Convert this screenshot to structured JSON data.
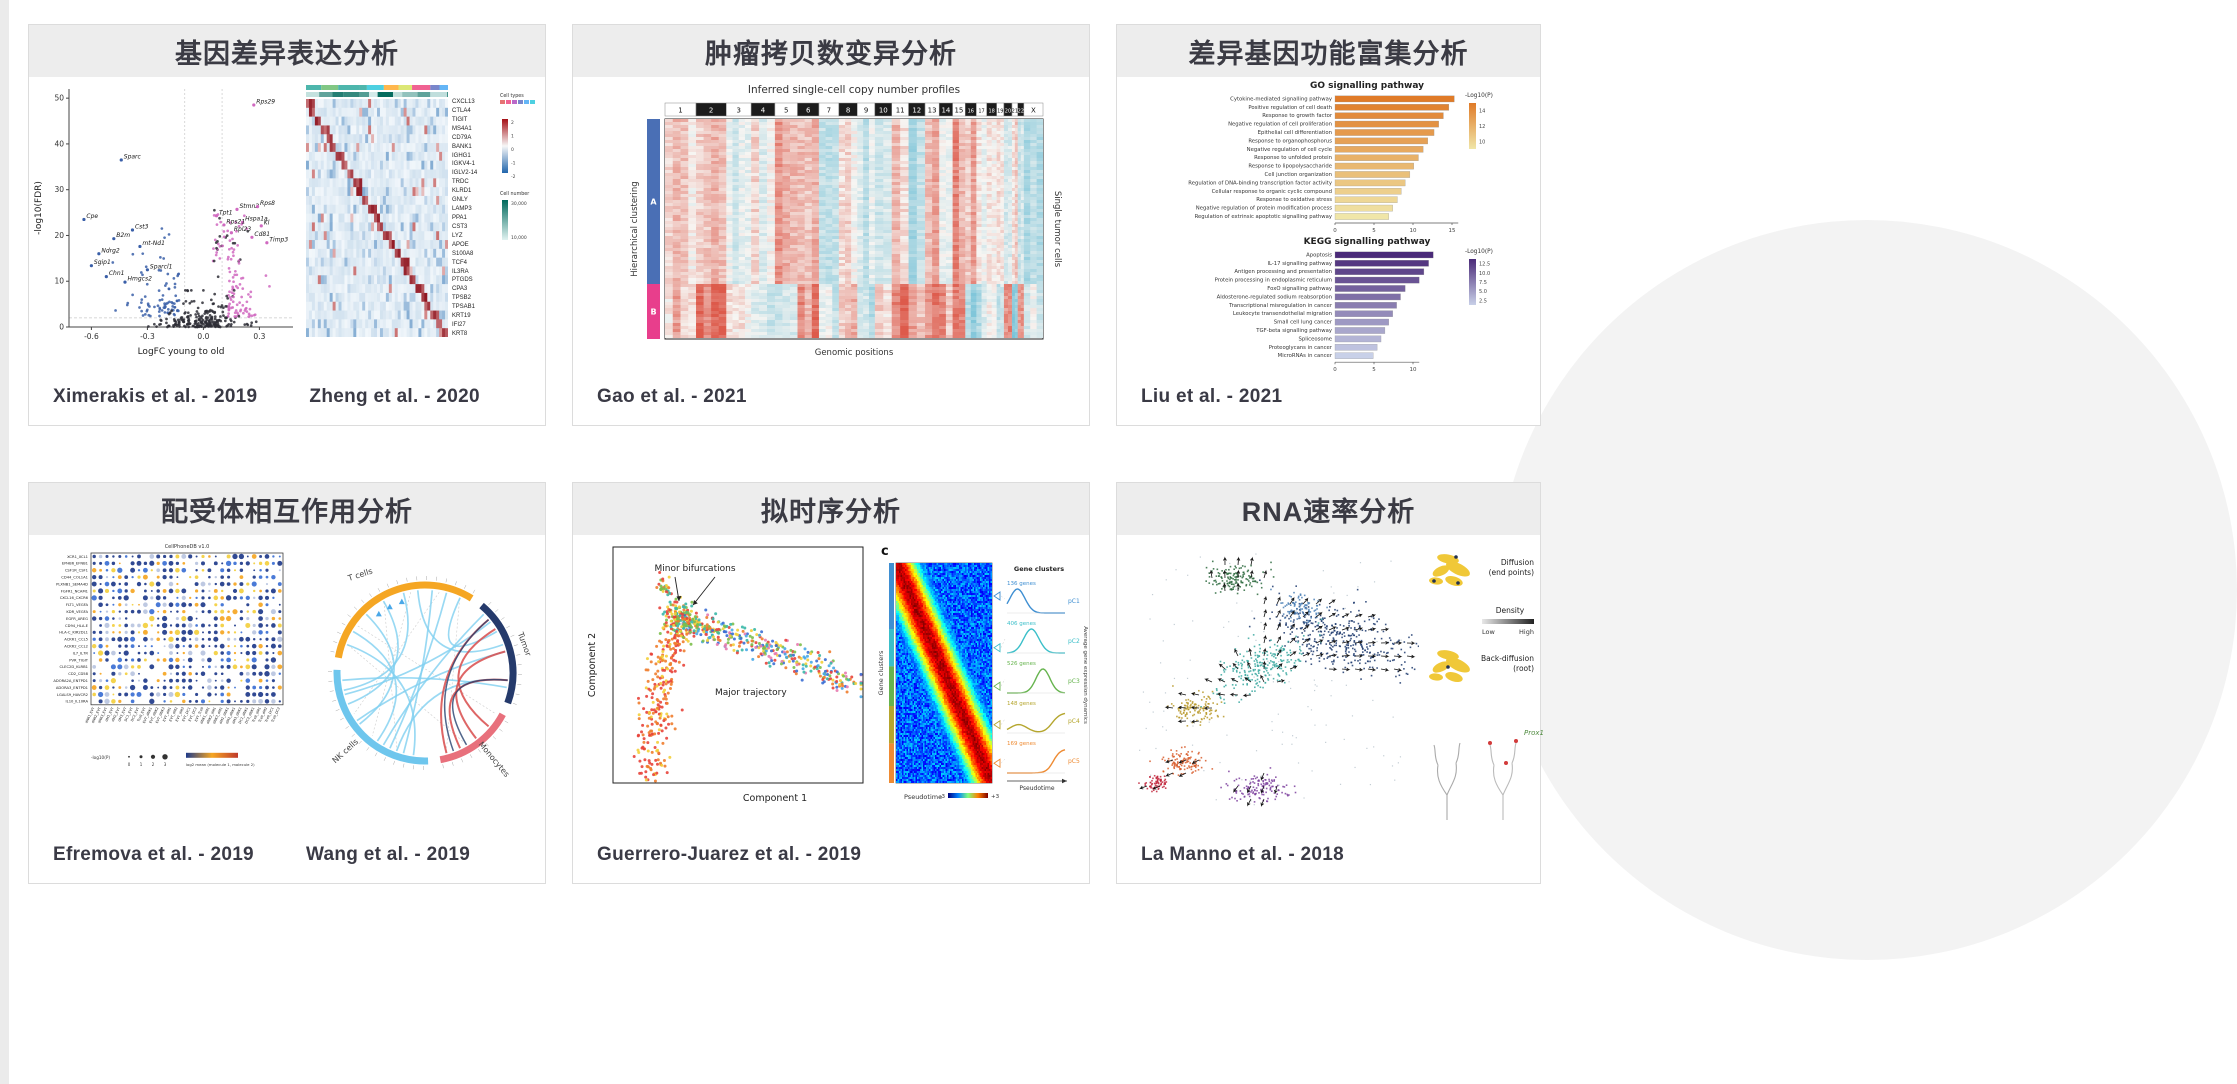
{
  "cards": [
    {
      "key": "dge",
      "title": "基因差异表达分析",
      "citations": [
        "Ximerakis et al. - 2019",
        "Zheng et al. - 2020"
      ]
    },
    {
      "key": "cnv",
      "title": "肿瘤拷贝数变异分析",
      "citations": [
        "Gao et al. - 2021"
      ]
    },
    {
      "key": "enrich",
      "title": "差异基因功能富集分析",
      "citations": [
        "Liu et al. - 2021"
      ]
    },
    {
      "key": "lri",
      "title": "配受体相互作用分析",
      "citations": [
        "Efremova et al. - 2019",
        "Wang et al. - 2019"
      ]
    },
    {
      "key": "pseudotime",
      "title": "拟时序分析",
      "citations": [
        "Guerrero-Juarez et al. - 2019"
      ]
    },
    {
      "key": "velocity",
      "title": "RNA速率分析",
      "citations": [
        "La Manno et al. - 2018"
      ]
    }
  ],
  "chart_data": [
    {
      "id": "volcano",
      "panel": "dge",
      "type": "scatter",
      "xlabel": "LogFC young to old",
      "ylabel": "-log10(FDR)",
      "xticks": [
        -0.6,
        -0.3,
        0.0,
        0.3
      ],
      "yticks": [
        0,
        10,
        20,
        30,
        40,
        50
      ],
      "xlim": [
        -0.72,
        0.48
      ],
      "ylim": [
        0,
        52
      ],
      "sig_y": 2,
      "sig_x": [
        -0.1,
        0.1
      ],
      "colors": {
        "down": "#3a5fa8",
        "up": "#d069c0",
        "ns": "#2e2e36"
      },
      "labeled_genes": [
        [
          "Rps29",
          0.27,
          48.5
        ],
        [
          "Sparc",
          -0.44,
          36.5
        ],
        [
          "Cpe",
          -0.64,
          23.5
        ],
        [
          "Cst3",
          -0.38,
          21.2
        ],
        [
          "B2m",
          -0.48,
          19.3
        ],
        [
          "mt-Nd1",
          -0.34,
          17.6
        ],
        [
          "Ndrg2",
          -0.56,
          16.0
        ],
        [
          "Sgip1",
          -0.6,
          13.4
        ],
        [
          "Sparcl1",
          -0.3,
          12.5
        ],
        [
          "Chn1",
          -0.52,
          11.0
        ],
        [
          "Hmgcs2",
          -0.42,
          9.8
        ],
        [
          "Stmn2",
          0.18,
          25.7
        ],
        [
          "Rps8",
          0.29,
          26.3
        ],
        [
          "Tpt1",
          0.07,
          24.3
        ],
        [
          "Hspa1a",
          0.21,
          22.9
        ],
        [
          "Rps21",
          0.11,
          22.3
        ],
        [
          "Kl",
          0.31,
          22.1
        ],
        [
          "Rpl23",
          0.15,
          20.6
        ],
        [
          "Cd81",
          0.26,
          19.6
        ],
        [
          "Timp3",
          0.34,
          18.4
        ]
      ]
    },
    {
      "id": "marker_heatmap",
      "panel": "dge",
      "type": "heatmap",
      "genes": [
        "CXCL13",
        "CTLA4",
        "TIGIT",
        "MS4A1",
        "CD79A",
        "BANK1",
        "IGHG1",
        "IGKV4-1",
        "IGLV2-14",
        "TRDC",
        "KLRD1",
        "GNLY",
        "LAMP3",
        "PPA1",
        "CST3",
        "LYZ",
        "APOE",
        "S100A8",
        "TCF4",
        "IL3RA",
        "PTGDS",
        "CPA3",
        "TPSB2",
        "TPSAB1",
        "KRT19",
        "IFI27",
        "KRT8"
      ],
      "legend": {
        "cell_types": "Cell types",
        "cell_number": "Cell number",
        "colorbar_ticks": [
          "2",
          "1",
          "0",
          "-1",
          "-2"
        ],
        "cell_number_ticks": [
          "30,000",
          "10,000"
        ]
      },
      "annotation_colors": [
        "#e57373",
        "#f06292",
        "#ba68c8",
        "#7986cb",
        "#64b5f6",
        "#4dd0e1",
        "#4db6ac",
        "#81c784",
        "#dce775",
        "#ffd54f",
        "#ffb74d",
        "#a1887f"
      ]
    },
    {
      "id": "cnv_heatmap",
      "panel": "cnv",
      "type": "heatmap",
      "title": "Inferred single-cell copy number profiles",
      "chromosomes": [
        "1",
        "2",
        "3",
        "4",
        "5",
        "6",
        "7",
        "8",
        "9",
        "10",
        "11",
        "12",
        "13",
        "14",
        "15",
        "16",
        "17",
        "18",
        "19",
        "20",
        "21",
        "22",
        "X"
      ],
      "chrom_widths": [
        8.1,
        7.9,
        6.5,
        6.2,
        5.9,
        5.6,
        5.2,
        4.8,
        4.6,
        4.4,
        4.4,
        4.3,
        3.7,
        3.5,
        3.3,
        2.9,
        2.7,
        2.6,
        1.9,
        2.1,
        1.5,
        1.6,
        5.0
      ],
      "left_label": "Hierarchical clustering",
      "right_label": "Single tumor cells",
      "bottom_label": "Genomic positions",
      "clusters": [
        {
          "name": "A",
          "color": "#4a6fb5",
          "fraction": 0.75
        },
        {
          "name": "B",
          "color": "#e83e8c",
          "fraction": 0.25
        }
      ],
      "palette": {
        "gain": "#dd5a4b",
        "loss": "#79c3d8",
        "neutral": "#f7f5f2"
      }
    },
    {
      "id": "go_enrichment",
      "panel": "enrich",
      "type": "bar",
      "title": "GO signalling pathway",
      "legend_title": "-Log10(P)",
      "legend_ticks": [
        "14",
        "12",
        "10"
      ],
      "xticks": [
        0,
        5,
        10,
        15
      ],
      "categories": [
        "Cytokine-mediated signalling pathway",
        "Positive regulation of cell death",
        "Response to growth factor",
        "Negative regulation of cell proliferation",
        "Epithelial cell differentiation",
        "Response to organophosphorus",
        "Negative regulation of cell cycle",
        "Response to unfolded protein",
        "Response to lipopolysaccharide",
        "Cell junction organization",
        "Regulation of DNA-binding transcription factor activity",
        "Cellular response to organic cyclic compound",
        "Response to oxidative stress",
        "Negative regulation of protein modification process",
        "Regulation of extrinsic apoptotic signalling pathway"
      ],
      "values": [
        15.3,
        14.6,
        13.9,
        13.3,
        12.7,
        11.9,
        11.3,
        10.7,
        10.1,
        9.6,
        9.0,
        8.5,
        8.0,
        7.4,
        6.9
      ],
      "color_high": "#e07b28",
      "color_low": "#f0e6a8"
    },
    {
      "id": "kegg_enrichment",
      "panel": "enrich",
      "type": "bar",
      "title": "KEGG signalling pathway",
      "legend_title": "-Log10(P)",
      "legend_ticks": [
        "12.5",
        "10.0",
        "7.5",
        "5.0",
        "2.5"
      ],
      "xticks": [
        0,
        5,
        10
      ],
      "categories": [
        "Apoptosis",
        "IL-17 signalling pathway",
        "Antigen processing and presentation",
        "Protein processing in endoplasmic reticulum",
        "FoxO signalling pathway",
        "Aldosterone-regulated sodium reabsorption",
        "Transcriptional misregulation in cancer",
        "Leukocyte transendothelial migration",
        "Small cell lung cancer",
        "TGF-beta signalling pathway",
        "Spliceosome",
        "Proteoglycans in cancer",
        "MicroRNAs in cancer"
      ],
      "values": [
        12.6,
        12.0,
        11.4,
        10.8,
        9.0,
        8.4,
        7.9,
        7.4,
        6.9,
        6.4,
        5.9,
        5.4,
        4.9
      ],
      "color_high": "#4a2a78",
      "color_low": "#c8d0e8"
    },
    {
      "id": "cellphonedb_dotplot",
      "panel": "lri",
      "type": "heatmap",
      "title": "CellPhoneDB v1.0",
      "rows": [
        "XCR1_XCL1",
        "EPHB6_EFNB1",
        "CSF1R_CSF1",
        "CD44_COL1A1",
        "PLXNB1_SEMA4D",
        "FGFR1_NCAM1",
        "CXCL16_CXCR6",
        "FLT1_VEGFA",
        "KDR_VEGFA",
        "EGFR_AREG",
        "CD94_HLA-E",
        "HLA-C_KIR2DL1",
        "ACKR1_CCL5",
        "ACKR2_CCL2",
        "IL7_IL7R",
        "PVR_TIGIT",
        "CLEC2D_KLRB1",
        "CD2_CD58",
        "ADORA2A_ENTPD1",
        "ADORA3_ENTPD1",
        "LGALS9_HAVCR2",
        "IL10_IL10RA"
      ],
      "cols": [
        "dNK1_EVT",
        "dNK2_EVT",
        "dNK3_EVT",
        "dM1_EVT",
        "dM2_EVT",
        "dM3_EVT",
        "DC1_EVT",
        "DC2_EVT",
        "Tcell_EVT",
        "EVT_dNK1",
        "EVT_dNK2",
        "EVT_dNK3",
        "EVT_dM1",
        "EVT_dM2",
        "EVT_dM3",
        "EVT_DC1",
        "EVT_DC2",
        "EVT_Tcell",
        "dNK1_dM1",
        "dNK2_dM1",
        "dNK3_dM1",
        "dM1_dNK1",
        "dM2_dNK1",
        "dM3_dNK1",
        "DC1_dNK1",
        "DC2_dNK1",
        "Tcell_dM1",
        "Tcell_dM2",
        "Tcell_DC1",
        "Tcell_DC2"
      ],
      "legend": {
        "size_title": "-log10(P)",
        "size_ticks": [
          "0",
          "1",
          "2",
          "3"
        ],
        "color_title": "log2 mean (molecule 1, molecule 2)"
      }
    },
    {
      "id": "chord",
      "panel": "lri",
      "type": "chord",
      "groups": [
        {
          "label": "T cells",
          "color": "#f5a623"
        },
        {
          "label": "Tumor",
          "color": "#253a6b"
        },
        {
          "label": "Monocytes",
          "color": "#e8707c"
        },
        {
          "label": "NK cells",
          "color": "#6ec6ed"
        }
      ]
    },
    {
      "id": "trajectory",
      "panel": "pseudotime",
      "type": "scatter",
      "xlabel": "Component 1",
      "ylabel": "Component 2",
      "annotations": {
        "minor": "Minor bifurcations",
        "major": "Major trajectory"
      }
    },
    {
      "id": "pseudotime_heatmap",
      "panel": "pseudotime",
      "type": "heatmap",
      "panel_label": "c",
      "left_label": "Gene clusters",
      "bottom_label": "Pseudotime",
      "colorbar_ticks": [
        "-3",
        "+3"
      ],
      "right_title": "Gene clusters",
      "right_xlabel": "Pseudotime",
      "right_ylabel": "Average gene expression dynamics",
      "clusters": [
        {
          "name": "pC1",
          "genes": "136 genes",
          "color": "#3f8fd2",
          "fraction": 0.3
        },
        {
          "name": "pC2",
          "genes": "406 genes",
          "color": "#3bbfc9",
          "fraction": 0.17
        },
        {
          "name": "pC3",
          "genes": "526 genes",
          "color": "#66b44e",
          "fraction": 0.18
        },
        {
          "name": "pC4",
          "genes": "148 genes",
          "color": "#b5a62e",
          "fraction": 0.17
        },
        {
          "name": "pC5",
          "genes": "169 genes",
          "color": "#ee8b33",
          "fraction": 0.18
        }
      ]
    },
    {
      "id": "velocity",
      "panel": "velocity",
      "type": "scatter",
      "cluster_colors": [
        "#2e6b3f",
        "#1f3b6e",
        "#3aa8a0",
        "#b8992a",
        "#d85c2a",
        "#c2273d",
        "#7d3f9e",
        "#4a7fb5"
      ],
      "insets": {
        "diffusion_l1": "Diffusion",
        "diffusion_l2": "(end points)",
        "density": "Density",
        "low": "Low",
        "high": "High",
        "back_l1": "Back-diffusion",
        "back_l2": "(root)",
        "gene": "Prox1"
      }
    }
  ]
}
